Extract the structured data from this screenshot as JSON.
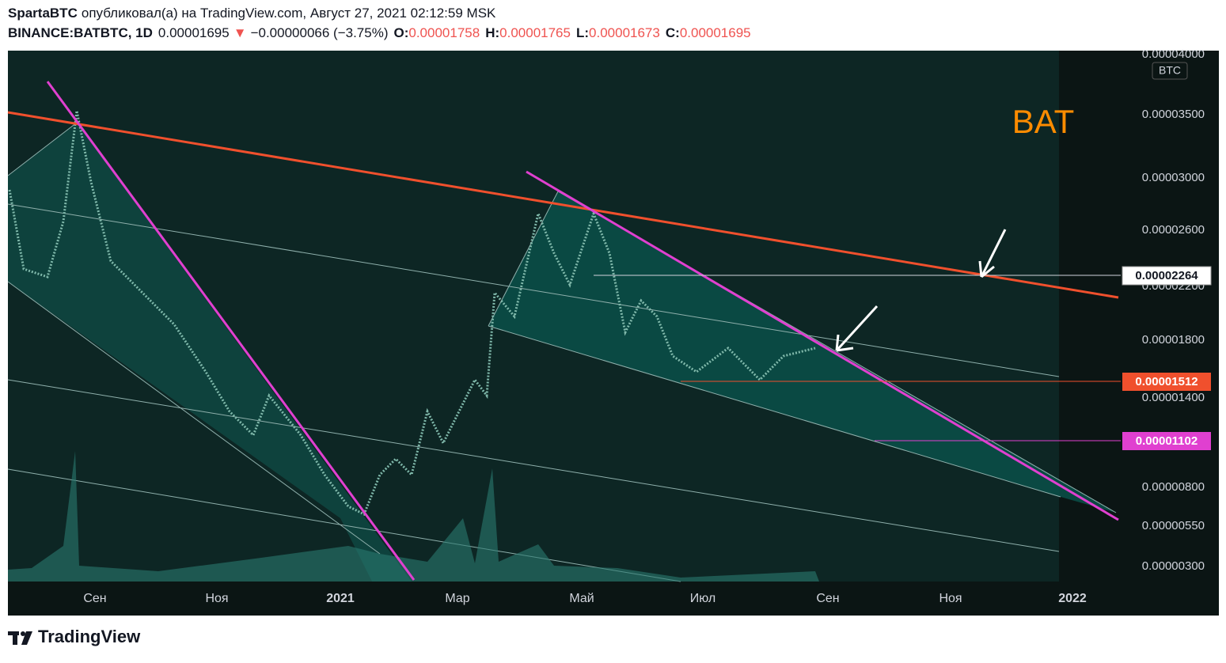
{
  "header": {
    "publisher": "SpartaBTC",
    "published_text": "опубликовал(а) на TradingView.com, Август 27, 2021 02:12:59 MSK",
    "symbol": "BINANCE:BATBTC, 1D",
    "last": "0.00001695",
    "change_arrow": "▼",
    "change": "−0.00000066 (−3.75%)",
    "ohlc": [
      {
        "label": "O:",
        "value": "0.00001758"
      },
      {
        "label": "H:",
        "value": "0.00001765"
      },
      {
        "label": "L:",
        "value": "0.00001673"
      },
      {
        "label": "C:",
        "value": "0.00001695"
      }
    ]
  },
  "chart": {
    "annotation": "BAT",
    "currency": "BTC",
    "price_axis": [
      "0.00004000",
      "0.00003500",
      "0.00003000",
      "0.00002600",
      "0.00002200",
      "0.00001800",
      "0.00001400",
      "0.00000800",
      "0.00000550",
      "0.00000300"
    ],
    "time_axis": [
      "Сен",
      "Ноя",
      "2021",
      "Мар",
      "Май",
      "Июл",
      "Сен",
      "Ноя",
      "2022"
    ],
    "price_tags": [
      "0.00002264",
      "0.00001512",
      "0.00001102"
    ]
  },
  "footer": {
    "brand": "TradingView"
  }
}
